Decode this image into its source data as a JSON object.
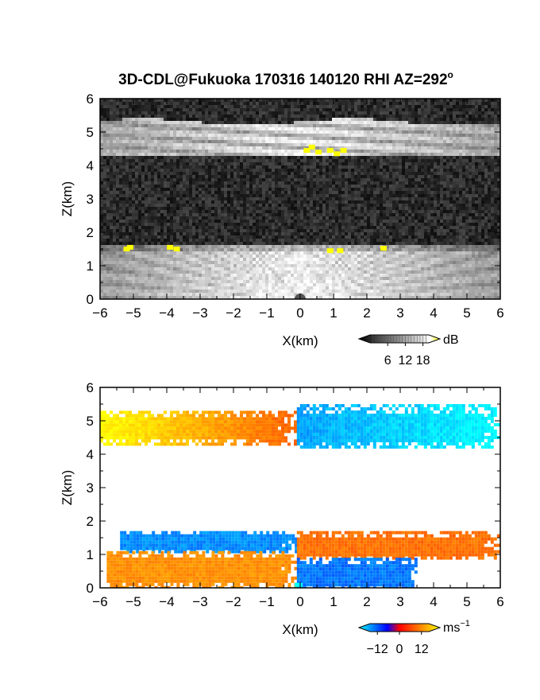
{
  "title": "3D-CDL@Fukuoka 170316 140120 RHI AZ=292",
  "title_degree": "o",
  "chart_data": [
    {
      "type": "heatmap",
      "panel": "top",
      "quantity": "backscatter intensity",
      "xlabel": "X(km)",
      "ylabel": "Z(km)",
      "xlim": [
        -6,
        6
      ],
      "ylim": [
        0,
        6
      ],
      "xticks": [
        -6,
        -5,
        -4,
        -3,
        -2,
        -1,
        0,
        1,
        2,
        3,
        4,
        5,
        6
      ],
      "yticks": [
        0,
        1,
        2,
        3,
        4,
        5,
        6
      ],
      "colorbar": {
        "unit": "dB",
        "ticks": [
          6,
          12,
          18
        ],
        "range": [
          0,
          20
        ],
        "colors": [
          "#000000",
          "#ffffff",
          "#ffff00"
        ]
      },
      "layers": [
        {
          "name": "upper cloud layer",
          "z_bottom": 4.3,
          "z_top": 5.3,
          "x_range": [
            -6,
            6
          ],
          "level_db": 14
        },
        {
          "name": "boundary layer",
          "z_bottom": 0.0,
          "z_top": 1.6,
          "x_range": [
            -6,
            6
          ],
          "level_db": 13
        },
        {
          "name": "clear air noise",
          "z_bottom": 1.6,
          "z_top": 4.3,
          "x_range": [
            -6,
            6
          ],
          "level_db": 3
        }
      ]
    },
    {
      "type": "heatmap",
      "panel": "bottom",
      "quantity": "Doppler velocity",
      "xlabel": "X(km)",
      "ylabel": "Z(km)",
      "xlim": [
        -6,
        6
      ],
      "ylim": [
        0,
        6
      ],
      "xticks": [
        -6,
        -5,
        -4,
        -3,
        -2,
        -1,
        0,
        1,
        2,
        3,
        4,
        5,
        6
      ],
      "yticks": [
        0,
        1,
        2,
        3,
        4,
        5,
        6
      ],
      "colorbar": {
        "unit": "ms",
        "unit_exponent": "−1",
        "ticks": [
          -12,
          0,
          12
        ],
        "tick_labels": [
          "−12",
          "0",
          "12"
        ],
        "range": [
          -16,
          16
        ]
      },
      "regions": [
        {
          "name": "upper layer west",
          "x_range": [
            -6,
            -0.1
          ],
          "z_range": [
            4.3,
            5.3
          ],
          "velocity_start": 16,
          "velocity_end": 6
        },
        {
          "name": "upper layer east",
          "x_range": [
            -0.1,
            6
          ],
          "z_range": [
            4.2,
            5.5
          ],
          "velocity_start": -12,
          "velocity_end": -16
        },
        {
          "name": "lower layer top west",
          "x_range": [
            -5.4,
            -0.1
          ],
          "z_range": [
            1.1,
            1.7
          ],
          "velocity": -11
        },
        {
          "name": "lower layer top east",
          "x_range": [
            -0.1,
            6
          ],
          "z_range": [
            0.9,
            1.7
          ],
          "velocity": 7
        },
        {
          "name": "lower layer bottom west",
          "x_range": [
            -5.8,
            -0.1
          ],
          "z_range": [
            0.0,
            1.1
          ],
          "velocity": 9
        },
        {
          "name": "lower layer bottom east",
          "x_range": [
            -0.1,
            3.5
          ],
          "z_range": [
            0.0,
            0.9
          ],
          "velocity": -10
        }
      ]
    }
  ]
}
